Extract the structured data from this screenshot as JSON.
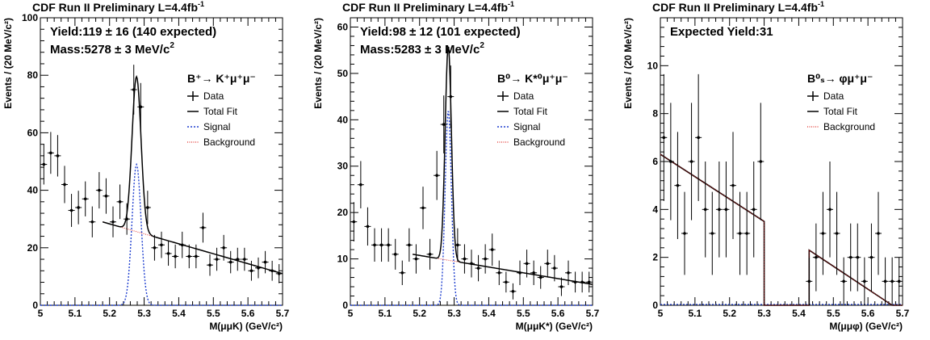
{
  "chart_data": [
    {
      "type": "scatter",
      "title": "CDF Run II Preliminary L=4.4fb",
      "title_sup": "-1",
      "yield_line1": "Yield:119 ± 16 (140 expected)",
      "yield_line2": "Mass:5278 ± 3 MeV/c",
      "yield_line2_sup": "2",
      "process": "B⁺→ K⁺μ⁺μ⁻",
      "xlabel": "M(μμK) (GeV/c²)",
      "ylabel": "Events / (20 MeV/c²)",
      "xlim": [
        5.0,
        5.7
      ],
      "ylim": [
        0,
        100
      ],
      "xticks": [
        "5",
        "5.1",
        "5.2",
        "5.3",
        "5.4",
        "5.5",
        "5.6",
        "5.7"
      ],
      "yticks": [
        "0",
        "20",
        "40",
        "60",
        "80",
        "100"
      ],
      "legend": [
        "Data",
        "Total Fit",
        "Signal",
        "Background"
      ],
      "data_x": [
        5.01,
        5.03,
        5.05,
        5.07,
        5.09,
        5.11,
        5.13,
        5.15,
        5.17,
        5.19,
        5.21,
        5.23,
        5.25,
        5.27,
        5.29,
        5.31,
        5.33,
        5.35,
        5.37,
        5.39,
        5.41,
        5.43,
        5.45,
        5.47,
        5.49,
        5.51,
        5.53,
        5.55,
        5.57,
        5.59,
        5.61,
        5.63,
        5.65,
        5.67,
        5.69
      ],
      "data_y": [
        49,
        53,
        52,
        42,
        33,
        34,
        37,
        29,
        40,
        38,
        29,
        36,
        30,
        75,
        69,
        34,
        20,
        21,
        18,
        17,
        21,
        17,
        17,
        27,
        14,
        16,
        20,
        15,
        16,
        16,
        12,
        13,
        15,
        12,
        11
      ],
      "fit_peak_mean": 5.278,
      "fit_sigma": 0.013,
      "signal_amplitude": 49,
      "background_line": [
        [
          5.18,
          29
        ],
        [
          5.7,
          11
        ]
      ],
      "fit_range": [
        5.18,
        5.7
      ]
    },
    {
      "type": "scatter",
      "title": "CDF Run II Preliminary L=4.4fb",
      "title_sup": "-1",
      "yield_line1": "Yield:98 ± 12 (101 expected)",
      "yield_line2": "Mass:5283 ± 3 MeV/c",
      "yield_line2_sup": "2",
      "process": "B⁰→ K*⁰μ⁺μ⁻",
      "xlabel": "M(μμK*) (GeV/c²)",
      "ylabel": "Events / (20 MeV/c²)",
      "xlim": [
        5.0,
        5.7
      ],
      "ylim": [
        0,
        62
      ],
      "xticks": [
        "5",
        "5.1",
        "5.2",
        "5.3",
        "5.4",
        "5.5",
        "5.6",
        "5.7"
      ],
      "yticks": [
        "0",
        "10",
        "20",
        "30",
        "40",
        "50",
        "60"
      ],
      "legend": [
        "Data",
        "Total Fit",
        "Signal",
        "Background"
      ],
      "data_x": [
        5.01,
        5.03,
        5.05,
        5.07,
        5.09,
        5.11,
        5.13,
        5.15,
        5.17,
        5.19,
        5.21,
        5.23,
        5.25,
        5.27,
        5.29,
        5.31,
        5.33,
        5.35,
        5.37,
        5.39,
        5.41,
        5.43,
        5.45,
        5.47,
        5.49,
        5.51,
        5.53,
        5.55,
        5.57,
        5.59,
        5.61,
        5.63,
        5.65,
        5.67,
        5.69
      ],
      "data_y": [
        18,
        26,
        17,
        13,
        13,
        13,
        11,
        7,
        13,
        10,
        21,
        11,
        28,
        39,
        45,
        13,
        10,
        9,
        8,
        10,
        12,
        7,
        5,
        3,
        7,
        9,
        7,
        6,
        9,
        8,
        4,
        7,
        5,
        5,
        5
      ],
      "fit_peak_mean": 5.283,
      "fit_sigma": 0.009,
      "signal_amplitude": 42,
      "background_line": [
        [
          5.18,
          11
        ],
        [
          5.7,
          4.5
        ]
      ],
      "fit_range": [
        5.18,
        5.7
      ]
    },
    {
      "type": "scatter",
      "title": "CDF Run II Preliminary L=4.4fb",
      "title_sup": "-1",
      "yield_line1": "Expected Yield:31",
      "process": "B⁰ₛ→ φμ⁺μ⁻",
      "xlabel": "M(μμφ) (GeV/c²)",
      "ylabel": "Events / (20 MeV/c²)",
      "xlim": [
        5.0,
        5.7
      ],
      "ylim": [
        0,
        12
      ],
      "xticks": [
        "5",
        "5.1",
        "5.2",
        "5.3",
        "5.4",
        "5.5",
        "5.6",
        "5.7"
      ],
      "yticks": [
        "0",
        "2",
        "4",
        "6",
        "8",
        "10"
      ],
      "legend": [
        "Data",
        "Total Fit",
        "Background"
      ],
      "data_x": [
        5.01,
        5.03,
        5.05,
        5.07,
        5.09,
        5.11,
        5.13,
        5.15,
        5.17,
        5.19,
        5.21,
        5.23,
        5.25,
        5.27,
        5.29,
        5.43,
        5.45,
        5.47,
        5.49,
        5.51,
        5.53,
        5.55,
        5.57,
        5.59,
        5.61,
        5.63,
        5.65,
        5.67,
        5.69
      ],
      "data_y": [
        7,
        6,
        5,
        3,
        6,
        7,
        4,
        3,
        4,
        4,
        5,
        3,
        3,
        4,
        6,
        1,
        2,
        3,
        4,
        3,
        1,
        2,
        2,
        1,
        2,
        3,
        1,
        1,
        1
      ],
      "background_segments": [
        [
          [
            5.0,
            6.3
          ],
          [
            5.3,
            3.5
          ]
        ],
        [
          [
            5.43,
            2.3
          ],
          [
            5.67,
            0
          ]
        ]
      ],
      "fit_range": [
        5.0,
        5.7
      ]
    }
  ]
}
